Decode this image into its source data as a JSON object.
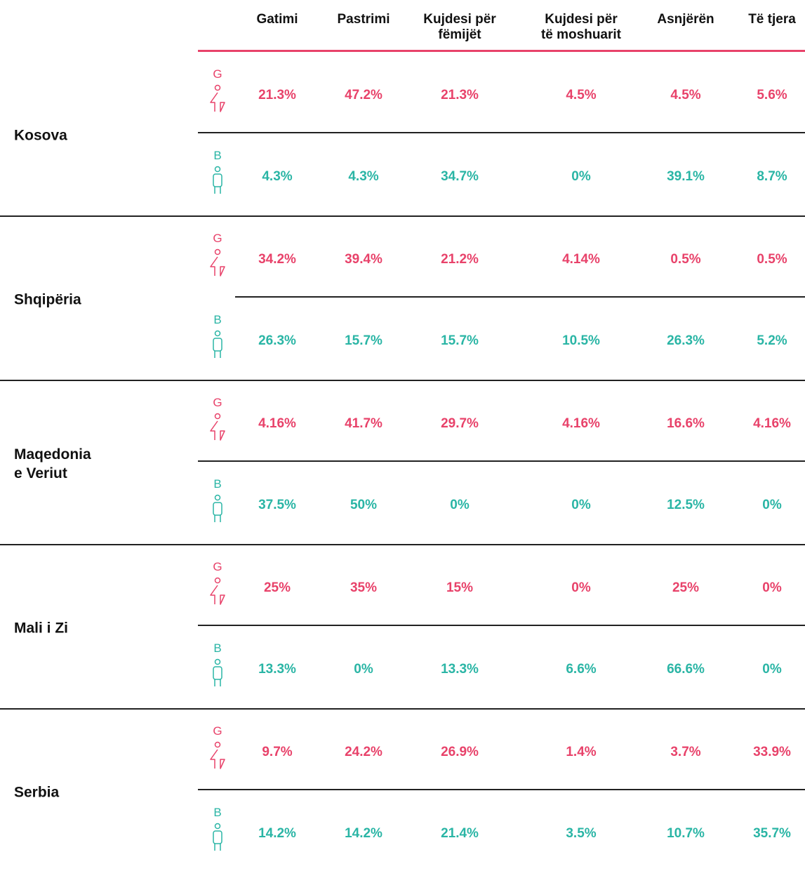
{
  "table": {
    "columns": [
      {
        "lines": [
          "Gatimi"
        ]
      },
      {
        "lines": [
          "Pastrimi"
        ]
      },
      {
        "lines": [
          "Kujdesi për",
          "fëmijët"
        ]
      },
      {
        "lines": [
          "Kujdesi për",
          "të moshuarit"
        ]
      },
      {
        "lines": [
          "Asnjërën"
        ]
      },
      {
        "lines": [
          "Të tjera"
        ]
      }
    ],
    "countries": [
      {
        "lines": [
          "Kosova"
        ],
        "rows": [
          {
            "label": "G",
            "values": [
              "21.3%",
              "47.2%",
              "21.3%",
              "4.5%",
              "4.5%",
              "5.6%"
            ]
          },
          {
            "label": "B",
            "values": [
              "4.3%",
              "4.3%",
              "34.7%",
              "0%",
              "39.1%",
              "8.7%"
            ]
          }
        ]
      },
      {
        "lines": [
          "Shqipëria"
        ],
        "rows": [
          {
            "label": "G",
            "values": [
              "34.2%",
              "39.4%",
              "21.2%",
              "4.14%",
              "0.5%",
              "0.5%"
            ]
          },
          {
            "label": "B",
            "values": [
              "26.3%",
              "15.7%",
              "15.7%",
              "10.5%",
              "26.3%",
              "5.2%"
            ]
          }
        ]
      },
      {
        "lines": [
          "Maqedonia",
          "e Veriut"
        ],
        "rows": [
          {
            "label": "G",
            "values": [
              "4.16%",
              "41.7%",
              "29.7%",
              "4.16%",
              "16.6%",
              "4.16%"
            ]
          },
          {
            "label": "B",
            "values": [
              "37.5%",
              "50%",
              "0%",
              "0%",
              "12.5%",
              "0%"
            ]
          }
        ]
      },
      {
        "lines": [
          "Mali i Zi"
        ],
        "rows": [
          {
            "label": "G",
            "values": [
              "25%",
              "35%",
              "15%",
              "0%",
              "25%",
              "0%"
            ]
          },
          {
            "label": "B",
            "values": [
              "13.3%",
              "0%",
              "13.3%",
              "6.6%",
              "66.6%",
              "0%"
            ]
          }
        ]
      },
      {
        "lines": [
          "Serbia"
        ],
        "rows": [
          {
            "label": "G",
            "values": [
              "9.7%",
              "24.2%",
              "26.9%",
              "1.4%",
              "3.7%",
              "33.9%"
            ]
          },
          {
            "label": "B",
            "values": [
              "14.2%",
              "14.2%",
              "21.4%",
              "3.5%",
              "10.7%",
              "35.7%"
            ]
          }
        ]
      }
    ]
  }
}
